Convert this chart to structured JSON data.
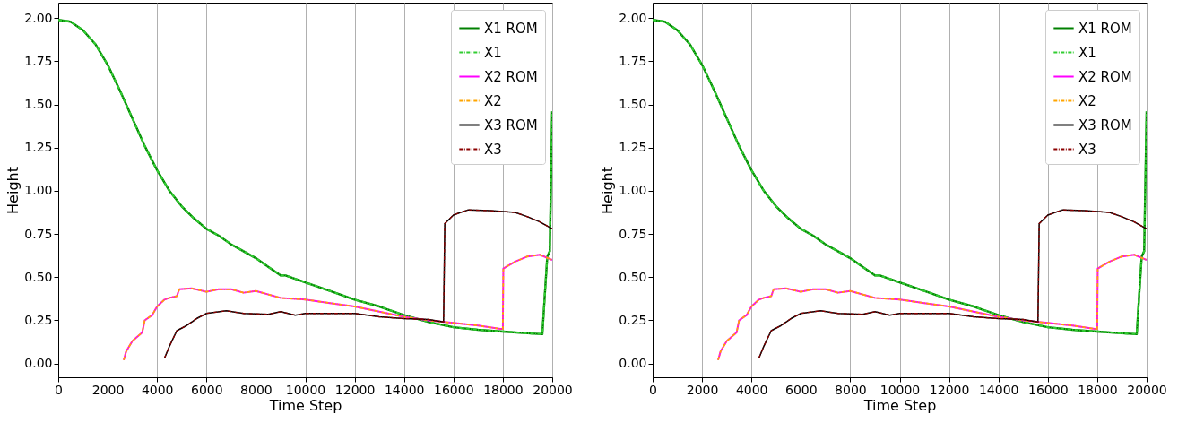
{
  "chart_data": [
    {
      "type": "line",
      "xlabel": "Time Step",
      "ylabel": "Height",
      "xlim": [
        0,
        20000
      ],
      "ylim": [
        -0.08,
        2.09
      ],
      "xticks": [
        0,
        2000,
        4000,
        6000,
        8000,
        10000,
        12000,
        14000,
        16000,
        18000,
        20000
      ],
      "yticks": [
        {
          "value": 0,
          "label": "0.00"
        },
        0.25,
        {
          "value": 0.5,
          "label": "0.50"
        },
        0.75,
        {
          "value": 1,
          "label": "1.00"
        },
        1.25,
        {
          "value": 1.5,
          "label": "1.50"
        },
        1.75,
        {
          "value": 2,
          "label": "2.00"
        }
      ],
      "grid": "x",
      "legend": "top right",
      "series": [
        {
          "name": "X1 ROM",
          "color": "#008000",
          "line_style": "solid",
          "x": [
            0,
            500,
            1000,
            1500,
            2000,
            2500,
            3000,
            3500,
            4000,
            4500,
            5000,
            5500,
            6000,
            6500,
            7000,
            7500,
            8000,
            8500,
            9000,
            9200,
            10000,
            11000,
            12000,
            13000,
            14000,
            15000,
            16000,
            17000,
            18000,
            19000,
            19600,
            19700,
            19800,
            19900,
            20000
          ],
          "values": [
            1.99,
            1.98,
            1.93,
            1.85,
            1.73,
            1.58,
            1.42,
            1.26,
            1.12,
            1.0,
            0.91,
            0.84,
            0.78,
            0.74,
            0.69,
            0.65,
            0.61,
            0.56,
            0.51,
            0.51,
            0.47,
            0.42,
            0.37,
            0.33,
            0.28,
            0.24,
            0.21,
            0.195,
            0.185,
            0.175,
            0.17,
            0.4,
            0.62,
            0.65,
            1.46
          ]
        },
        {
          "name": "X1",
          "color": "#32cd32",
          "line_style": "dashdot",
          "x": [
            0,
            500,
            1000,
            1500,
            2000,
            2500,
            3000,
            3500,
            4000,
            4500,
            5000,
            5500,
            6000,
            6500,
            7000,
            7500,
            8000,
            8500,
            9000,
            9200,
            10000,
            11000,
            12000,
            13000,
            14000,
            15000,
            16000,
            17000,
            18000,
            19000,
            19600,
            19700,
            19800,
            19900,
            20000
          ],
          "values": [
            1.99,
            1.98,
            1.93,
            1.85,
            1.73,
            1.58,
            1.42,
            1.26,
            1.12,
            1.0,
            0.91,
            0.84,
            0.78,
            0.74,
            0.69,
            0.65,
            0.61,
            0.56,
            0.51,
            0.51,
            0.47,
            0.42,
            0.37,
            0.33,
            0.28,
            0.24,
            0.21,
            0.195,
            0.185,
            0.175,
            0.17,
            0.4,
            0.62,
            0.65,
            1.46
          ]
        },
        {
          "name": "X2 ROM",
          "color": "#ff00ff",
          "line_style": "solid",
          "x": [
            2650,
            2750,
            3000,
            3400,
            3500,
            3800,
            4000,
            4300,
            4500,
            4800,
            4900,
            5400,
            6000,
            6500,
            7000,
            7500,
            8000,
            9000,
            10000,
            11000,
            12000,
            13000,
            14000,
            15000,
            16000,
            17000,
            17900,
            18000,
            18020,
            18500,
            19000,
            19500,
            20000
          ],
          "values": [
            0.02,
            0.07,
            0.13,
            0.18,
            0.25,
            0.28,
            0.33,
            0.37,
            0.38,
            0.39,
            0.43,
            0.435,
            0.415,
            0.43,
            0.43,
            0.41,
            0.42,
            0.38,
            0.37,
            0.35,
            0.33,
            0.3,
            0.27,
            0.25,
            0.235,
            0.22,
            0.2,
            0.2,
            0.55,
            0.59,
            0.62,
            0.63,
            0.6
          ]
        },
        {
          "name": "X2",
          "color": "#ffa500",
          "line_style": "dashdot",
          "x": [
            2650,
            2750,
            3000,
            3400,
            3500,
            3800,
            4000,
            4300,
            4500,
            4800,
            4900,
            5400,
            6000,
            6500,
            7000,
            7500,
            8000,
            9000,
            10000,
            11000,
            12000,
            13000,
            14000,
            15000,
            16000,
            17000,
            17900,
            18000,
            18020,
            18500,
            19000,
            19500,
            20000
          ],
          "values": [
            0.02,
            0.07,
            0.13,
            0.18,
            0.25,
            0.28,
            0.33,
            0.37,
            0.38,
            0.39,
            0.43,
            0.435,
            0.415,
            0.43,
            0.43,
            0.41,
            0.42,
            0.38,
            0.37,
            0.35,
            0.33,
            0.3,
            0.27,
            0.25,
            0.235,
            0.22,
            0.2,
            0.2,
            0.55,
            0.59,
            0.62,
            0.63,
            0.6
          ]
        },
        {
          "name": "X3 ROM",
          "color": "#000000",
          "line_style": "solid",
          "x": [
            4300,
            4500,
            4800,
            5200,
            5600,
            6000,
            6800,
            7500,
            8500,
            9000,
            9600,
            10000,
            11000,
            12000,
            13000,
            14000,
            15000,
            15600,
            15650,
            16000,
            16600,
            17500,
            18500,
            19000,
            19500,
            20000
          ],
          "values": [
            0.03,
            0.1,
            0.19,
            0.22,
            0.26,
            0.29,
            0.305,
            0.29,
            0.285,
            0.3,
            0.28,
            0.29,
            0.29,
            0.29,
            0.27,
            0.26,
            0.255,
            0.24,
            0.81,
            0.86,
            0.89,
            0.885,
            0.875,
            0.85,
            0.82,
            0.78
          ]
        },
        {
          "name": "X3",
          "color": "#8b0000",
          "line_style": "dashdot",
          "x": [
            4300,
            4500,
            4800,
            5200,
            5600,
            6000,
            6800,
            7500,
            8500,
            9000,
            9600,
            10000,
            11000,
            12000,
            13000,
            14000,
            15000,
            15600,
            15650,
            16000,
            16600,
            17500,
            18500,
            19000,
            19500,
            20000
          ],
          "values": [
            0.03,
            0.1,
            0.19,
            0.22,
            0.26,
            0.29,
            0.305,
            0.29,
            0.285,
            0.3,
            0.28,
            0.29,
            0.29,
            0.29,
            0.27,
            0.26,
            0.255,
            0.24,
            0.81,
            0.86,
            0.89,
            0.885,
            0.875,
            0.85,
            0.82,
            0.78
          ]
        }
      ]
    },
    {
      "type": "line",
      "xlabel": "Time Step",
      "ylabel": "Height",
      "xlim": [
        0,
        20000
      ],
      "ylim": [
        -0.08,
        2.09
      ],
      "xticks": [
        0,
        2000,
        4000,
        6000,
        8000,
        10000,
        12000,
        14000,
        16000,
        18000,
        20000
      ],
      "yticks": [
        {
          "value": 0,
          "label": "0.00"
        },
        0.25,
        {
          "value": 0.5,
          "label": "0.50"
        },
        0.75,
        {
          "value": 1,
          "label": "1.00"
        },
        1.25,
        {
          "value": 1.5,
          "label": "1.50"
        },
        1.75,
        {
          "value": 2,
          "label": "2.00"
        }
      ],
      "grid": "x",
      "legend": "top right",
      "series": [
        {
          "name": "X1 ROM",
          "color": "#008000",
          "line_style": "solid",
          "x": [
            0,
            500,
            1000,
            1500,
            2000,
            2500,
            3000,
            3500,
            4000,
            4500,
            5000,
            5500,
            6000,
            6500,
            7000,
            7500,
            8000,
            8500,
            9000,
            9200,
            10000,
            11000,
            12000,
            13000,
            14000,
            15000,
            16000,
            17000,
            18000,
            19000,
            19600,
            19700,
            19800,
            19900,
            20000
          ],
          "values": [
            1.99,
            1.98,
            1.93,
            1.85,
            1.73,
            1.58,
            1.42,
            1.26,
            1.12,
            1.0,
            0.91,
            0.84,
            0.78,
            0.74,
            0.69,
            0.65,
            0.61,
            0.56,
            0.51,
            0.51,
            0.47,
            0.42,
            0.37,
            0.33,
            0.28,
            0.24,
            0.21,
            0.195,
            0.185,
            0.175,
            0.17,
            0.4,
            0.62,
            0.65,
            1.46
          ]
        },
        {
          "name": "X1",
          "color": "#32cd32",
          "line_style": "dashdot",
          "x": [
            0,
            500,
            1000,
            1500,
            2000,
            2500,
            3000,
            3500,
            4000,
            4500,
            5000,
            5500,
            6000,
            6500,
            7000,
            7500,
            8000,
            8500,
            9000,
            9200,
            10000,
            11000,
            12000,
            13000,
            14000,
            15000,
            16000,
            17000,
            18000,
            19000,
            19600,
            19700,
            19800,
            19900,
            20000
          ],
          "values": [
            1.99,
            1.98,
            1.93,
            1.85,
            1.73,
            1.58,
            1.42,
            1.26,
            1.12,
            1.0,
            0.91,
            0.84,
            0.78,
            0.74,
            0.69,
            0.65,
            0.61,
            0.56,
            0.51,
            0.51,
            0.47,
            0.42,
            0.37,
            0.33,
            0.28,
            0.24,
            0.21,
            0.195,
            0.185,
            0.175,
            0.17,
            0.4,
            0.62,
            0.65,
            1.46
          ]
        },
        {
          "name": "X2 ROM",
          "color": "#ff00ff",
          "line_style": "solid",
          "x": [
            2650,
            2750,
            3000,
            3400,
            3500,
            3800,
            4000,
            4300,
            4500,
            4800,
            4900,
            5400,
            6000,
            6500,
            7000,
            7500,
            8000,
            9000,
            10000,
            11000,
            12000,
            13000,
            14000,
            15000,
            16000,
            17000,
            17900,
            18000,
            18020,
            18500,
            19000,
            19500,
            20000
          ],
          "values": [
            0.02,
            0.07,
            0.13,
            0.18,
            0.25,
            0.28,
            0.33,
            0.37,
            0.38,
            0.39,
            0.43,
            0.435,
            0.415,
            0.43,
            0.43,
            0.41,
            0.42,
            0.38,
            0.37,
            0.35,
            0.33,
            0.3,
            0.27,
            0.25,
            0.235,
            0.22,
            0.2,
            0.2,
            0.55,
            0.59,
            0.62,
            0.63,
            0.6
          ]
        },
        {
          "name": "X2",
          "color": "#ffa500",
          "line_style": "dashdot",
          "x": [
            2650,
            2750,
            3000,
            3400,
            3500,
            3800,
            4000,
            4300,
            4500,
            4800,
            4900,
            5400,
            6000,
            6500,
            7000,
            7500,
            8000,
            9000,
            10000,
            11000,
            12000,
            13000,
            14000,
            15000,
            16000,
            17000,
            17900,
            18000,
            18020,
            18500,
            19000,
            19500,
            20000
          ],
          "values": [
            0.02,
            0.07,
            0.13,
            0.18,
            0.25,
            0.28,
            0.33,
            0.37,
            0.38,
            0.39,
            0.43,
            0.435,
            0.415,
            0.43,
            0.43,
            0.41,
            0.42,
            0.38,
            0.37,
            0.35,
            0.33,
            0.3,
            0.27,
            0.25,
            0.235,
            0.22,
            0.2,
            0.2,
            0.55,
            0.59,
            0.62,
            0.63,
            0.6
          ]
        },
        {
          "name": "X3 ROM",
          "color": "#000000",
          "line_style": "solid",
          "x": [
            4300,
            4500,
            4800,
            5200,
            5600,
            6000,
            6800,
            7500,
            8500,
            9000,
            9600,
            10000,
            11000,
            12000,
            13000,
            14000,
            15000,
            15600,
            15650,
            16000,
            16600,
            17500,
            18500,
            19000,
            19500,
            20000
          ],
          "values": [
            0.03,
            0.1,
            0.19,
            0.22,
            0.26,
            0.29,
            0.305,
            0.29,
            0.285,
            0.3,
            0.28,
            0.29,
            0.29,
            0.29,
            0.27,
            0.26,
            0.255,
            0.24,
            0.81,
            0.86,
            0.89,
            0.885,
            0.875,
            0.85,
            0.82,
            0.78
          ]
        },
        {
          "name": "X3",
          "color": "#8b0000",
          "line_style": "dashdot",
          "x": [
            4300,
            4500,
            4800,
            5200,
            5600,
            6000,
            6800,
            7500,
            8500,
            9000,
            9600,
            10000,
            11000,
            12000,
            13000,
            14000,
            15000,
            15600,
            15650,
            16000,
            16600,
            17500,
            18500,
            19000,
            19500,
            20000
          ],
          "values": [
            0.03,
            0.1,
            0.19,
            0.22,
            0.26,
            0.29,
            0.305,
            0.29,
            0.285,
            0.3,
            0.28,
            0.29,
            0.29,
            0.29,
            0.27,
            0.26,
            0.255,
            0.24,
            0.81,
            0.86,
            0.89,
            0.885,
            0.875,
            0.85,
            0.82,
            0.78
          ]
        }
      ]
    }
  ]
}
